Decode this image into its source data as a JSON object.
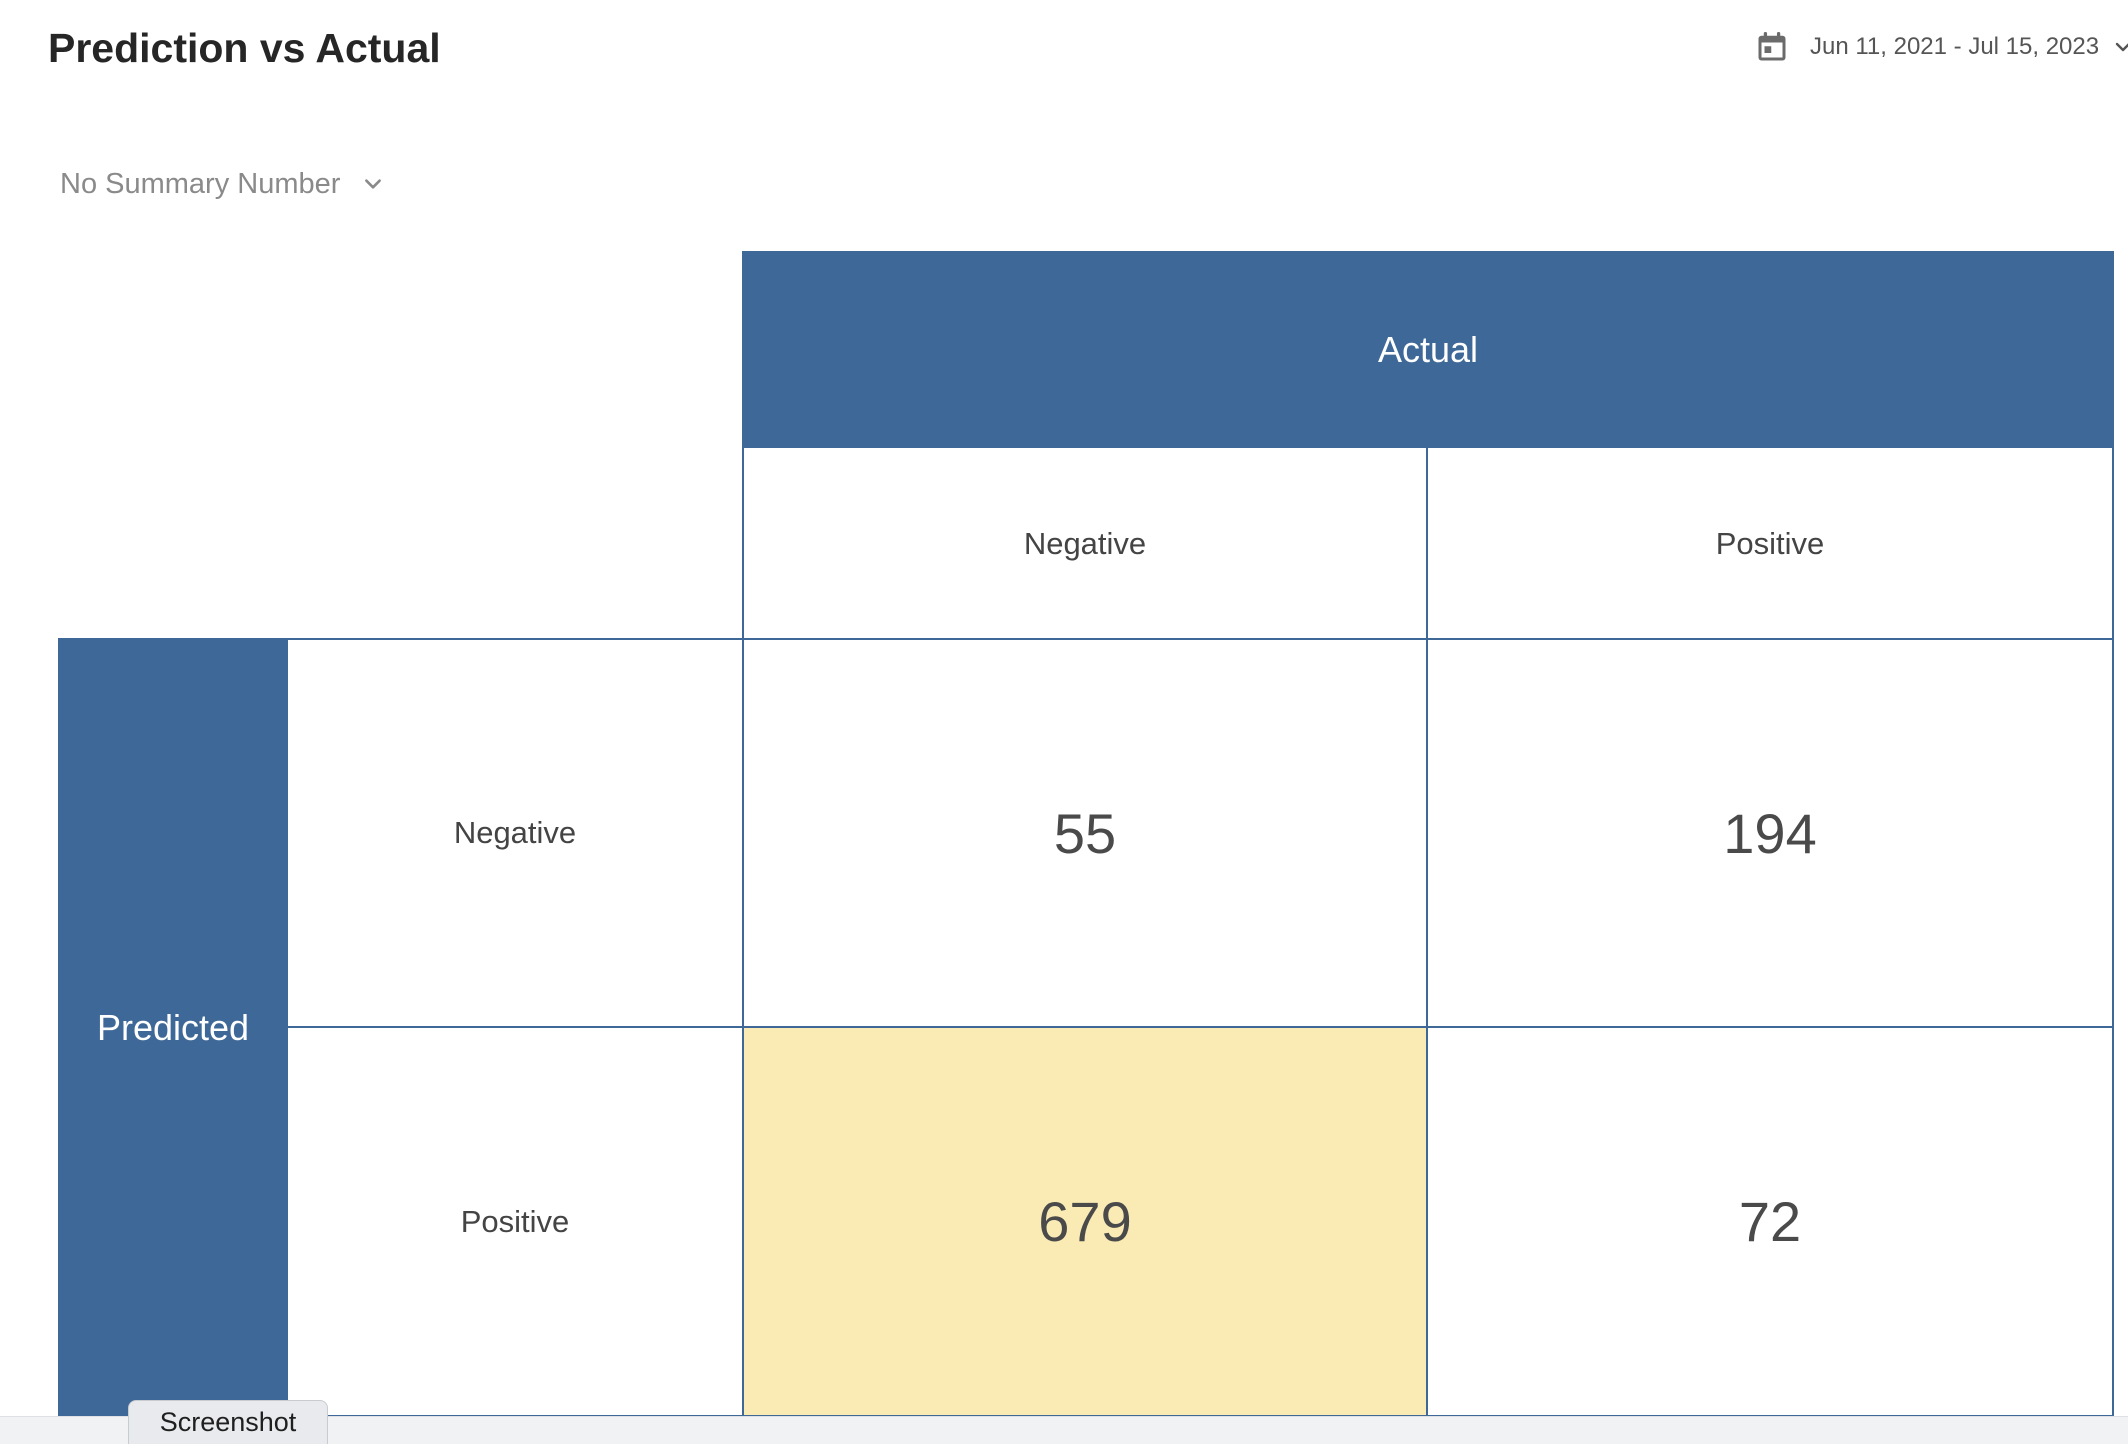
{
  "header": {
    "title": "Prediction vs Actual",
    "date_range": "Jun 11, 2021 - Jul 15, 2023",
    "date_icon": "calendar-icon"
  },
  "summary_select": {
    "value": "No Summary Number",
    "icon": "chevron-down-icon"
  },
  "matrix": {
    "column_axis_label": "Actual",
    "row_axis_label": "Predicted",
    "columns": [
      "Negative",
      "Positive"
    ],
    "rows": [
      "Negative",
      "Positive"
    ],
    "values": [
      [
        55,
        194
      ],
      [
        679,
        72
      ]
    ],
    "highlight_cell": {
      "row": 1,
      "col": 0
    },
    "colors": {
      "header": "#3e6897",
      "highlight": "#faebb5"
    }
  },
  "footer": {
    "screenshot_tab": "Screenshot"
  }
}
